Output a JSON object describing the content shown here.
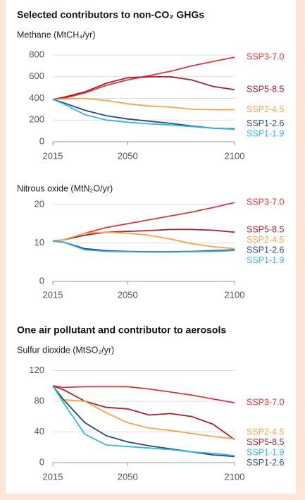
{
  "chart_data": [
    {
      "type": "line",
      "title": "Selected contributors to non-CO₂ GHGs",
      "subtitle": "Methane (MtCH₄/yr)",
      "x": [
        2015,
        2020,
        2030,
        2040,
        2050,
        2060,
        2070,
        2080,
        2090,
        2100
      ],
      "xlim": [
        2015,
        2100
      ],
      "xticks": [
        2015,
        2050,
        2100
      ],
      "ylim": [
        0,
        800
      ],
      "yticks": [
        0,
        200,
        400,
        600,
        800
      ],
      "grid": true,
      "series": [
        {
          "name": "SSP3-7.0",
          "color": "#e3343a",
          "values": [
            390,
            400,
            450,
            520,
            570,
            610,
            650,
            700,
            740,
            780
          ]
        },
        {
          "name": "SSP5-8.5",
          "color": "#a4232e",
          "values": [
            390,
            410,
            460,
            540,
            590,
            600,
            600,
            570,
            510,
            480
          ]
        },
        {
          "name": "SSP2-4.5",
          "color": "#f5a54a",
          "values": [
            390,
            395,
            400,
            380,
            350,
            330,
            320,
            300,
            295,
            295
          ]
        },
        {
          "name": "SSP1-2.6",
          "color": "#2a4a7a",
          "values": [
            390,
            360,
            290,
            240,
            210,
            190,
            170,
            145,
            125,
            120
          ]
        },
        {
          "name": "SSP1-1.9",
          "color": "#33b5e5",
          "values": [
            390,
            350,
            250,
            200,
            180,
            165,
            155,
            140,
            125,
            115
          ]
        }
      ]
    },
    {
      "type": "line",
      "subtitle": "Nitrous oxide (MtN₂O/yr)",
      "x": [
        2015,
        2020,
        2030,
        2040,
        2050,
        2060,
        2070,
        2080,
        2090,
        2100
      ],
      "xlim": [
        2015,
        2100
      ],
      "xticks": [
        2015,
        2050,
        2100
      ],
      "ylim": [
        0,
        22
      ],
      "yticks": [
        0,
        10,
        20
      ],
      "grid": true,
      "series": [
        {
          "name": "SSP3-7.0",
          "color": "#e3343a",
          "values": [
            10.5,
            10.8,
            12.5,
            14,
            15,
            16,
            17,
            18,
            19.2,
            20.5
          ]
        },
        {
          "name": "SSP5-8.5",
          "color": "#a4232e",
          "values": [
            10.5,
            10.8,
            12,
            12.8,
            13,
            13.2,
            13.5,
            13.5,
            13.3,
            12.8
          ]
        },
        {
          "name": "SSP2-4.5",
          "color": "#f5a54a",
          "values": [
            10.5,
            10.8,
            12.5,
            12.8,
            12.5,
            12,
            11,
            9.8,
            9,
            8.5
          ]
        },
        {
          "name": "SSP1-2.6",
          "color": "#2a4a7a",
          "values": [
            10.5,
            10.2,
            8.5,
            8,
            7.8,
            7.7,
            7.7,
            7.8,
            8,
            8.2
          ]
        },
        {
          "name": "SSP1-1.9",
          "color": "#33b5e5",
          "values": [
            10.5,
            10.2,
            8.2,
            7.8,
            7.7,
            7.6,
            7.6,
            7.7,
            7.8,
            8.0
          ]
        }
      ]
    },
    {
      "type": "line",
      "title": "One air pollutant and contributor to aerosols",
      "subtitle": "Sulfur dioxide (MtSO₂/yr)",
      "x": [
        2015,
        2020,
        2030,
        2040,
        2050,
        2060,
        2070,
        2080,
        2090,
        2100
      ],
      "xlim": [
        2015,
        2100
      ],
      "xticks": [
        2015,
        2050,
        2100
      ],
      "ylim": [
        0,
        125
      ],
      "yticks": [
        0,
        40,
        80,
        120
      ],
      "grid": true,
      "series": [
        {
          "name": "SSP3-7.0",
          "color": "#e3343a",
          "values": [
            100,
            98,
            99,
            99,
            99,
            96,
            92,
            88,
            83,
            78
          ]
        },
        {
          "name": "SSP5-8.5",
          "color": "#a4232e",
          "values": [
            100,
            95,
            80,
            72,
            70,
            62,
            64,
            60,
            50,
            30
          ]
        },
        {
          "name": "SSP2-4.5",
          "color": "#f5a54a",
          "values": [
            100,
            82,
            80,
            65,
            52,
            45,
            42,
            38,
            34,
            31
          ]
        },
        {
          "name": "SSP1-2.6",
          "color": "#2a4a7a",
          "values": [
            100,
            82,
            52,
            35,
            27,
            22,
            18,
            14,
            10,
            8
          ]
        },
        {
          "name": "SSP1-1.9",
          "color": "#33b5e5",
          "values": [
            100,
            78,
            37,
            23,
            21,
            19,
            17,
            14,
            12,
            9
          ]
        }
      ]
    }
  ]
}
